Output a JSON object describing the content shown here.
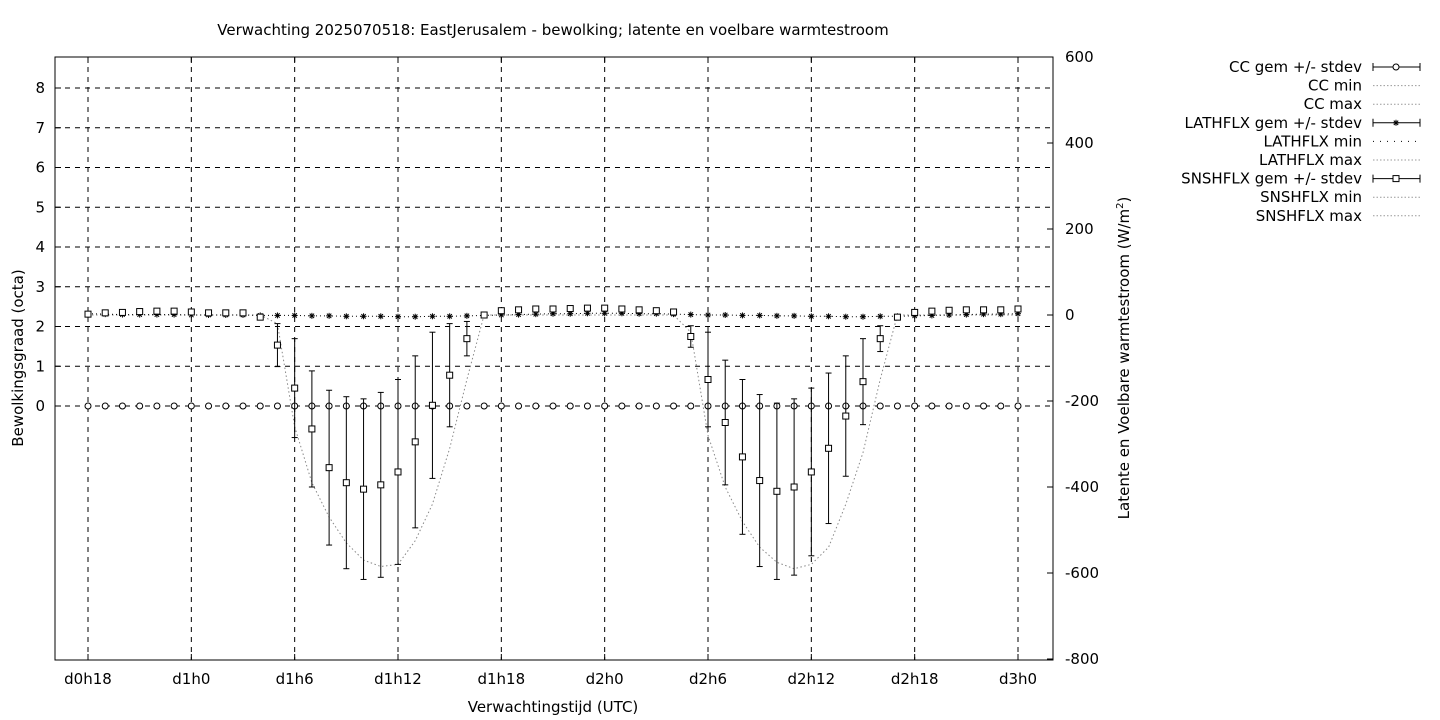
{
  "chart_data": {
    "type": "line",
    "title": "Verwachting 2025070518: EastJerusalem - bewolking; latente en voelbare warmtestroom",
    "xlabel": "Verwachtingstijd (UTC)",
    "ylabel": "Bewolkingsgraad (octa)",
    "y2label_main": "Latente en Voelbare warmtestroom (W/m",
    "y2label_sup": "2",
    "y2label_end": ")",
    "x_unit": "hours since d0h0",
    "xlim": [
      16,
      70
    ],
    "ylim": [
      -6.4,
      8.8
    ],
    "y2lim": [
      -800,
      600
    ],
    "grid": true,
    "x_ticks": [
      {
        "x": 18,
        "label": "d0h18"
      },
      {
        "x": 24,
        "label": "d1h0"
      },
      {
        "x": 30,
        "label": "d1h6"
      },
      {
        "x": 36,
        "label": "d1h12"
      },
      {
        "x": 42,
        "label": "d1h18"
      },
      {
        "x": 48,
        "label": "d2h0"
      },
      {
        "x": 54,
        "label": "d2h6"
      },
      {
        "x": 60,
        "label": "d2h12"
      },
      {
        "x": 66,
        "label": "d2h18"
      },
      {
        "x": 72,
        "label": "d3h0"
      }
    ],
    "y_ticks": [
      0,
      1,
      2,
      3,
      4,
      5,
      6,
      7,
      8
    ],
    "y2_ticks": [
      600,
      400,
      200,
      0,
      -200,
      -400,
      -600,
      -800
    ],
    "legend_placement": "outside-right",
    "legend": [
      {
        "label": "CC gem +/- stdev",
        "style": "circle-errorbar"
      },
      {
        "label": "CC min",
        "style": "dotted"
      },
      {
        "label": "CC max",
        "style": "dotted"
      },
      {
        "label": "LATHFLX gem +/- stdev",
        "style": "star-errorbar"
      },
      {
        "label": "LATHFLX min",
        "style": "sparse-dotted"
      },
      {
        "label": "LATHFLX max",
        "style": "dotted"
      },
      {
        "label": "SNSHFLX gem +/- stdev",
        "style": "square-errorbar"
      },
      {
        "label": "SNSHFLX min",
        "style": "dotted"
      },
      {
        "label": "SNSHFLX max",
        "style": "dotted"
      }
    ],
    "series": [
      {
        "name": "CC gem +/- stdev",
        "axis": "y",
        "marker": "circle",
        "x": [
          18,
          19,
          20,
          21,
          22,
          23,
          24,
          25,
          26,
          27,
          28,
          29,
          30,
          31,
          32,
          33,
          34,
          35,
          36,
          37,
          38,
          39,
          40,
          41,
          42,
          43,
          44,
          45,
          46,
          47,
          48,
          49,
          50,
          51,
          52,
          53,
          54,
          55,
          56,
          57,
          58,
          59,
          60,
          61,
          62,
          63,
          64,
          65,
          66,
          67,
          68,
          69,
          70,
          71,
          72
        ],
        "y": [
          0,
          0,
          0,
          0,
          0,
          0,
          0,
          0,
          0,
          0,
          0,
          0,
          0,
          0,
          0,
          0,
          0,
          0,
          0,
          0,
          0,
          0,
          0,
          0,
          0,
          0,
          0,
          0,
          0,
          0,
          0,
          0,
          0,
          0,
          0,
          0,
          0,
          0,
          0,
          0,
          0,
          0,
          0,
          0,
          0,
          0,
          0,
          0,
          0,
          0,
          0,
          0,
          0,
          0,
          0
        ]
      },
      {
        "name": "LATHFLX gem +/- stdev",
        "axis": "y2",
        "marker": "star",
        "x": [
          18,
          19,
          20,
          21,
          22,
          23,
          24,
          25,
          26,
          27,
          28,
          29,
          30,
          31,
          32,
          33,
          34,
          35,
          36,
          37,
          38,
          39,
          40,
          41,
          42,
          43,
          44,
          45,
          46,
          47,
          48,
          49,
          50,
          51,
          52,
          53,
          54,
          55,
          56,
          57,
          58,
          59,
          60,
          61,
          62,
          63,
          64,
          65,
          66,
          67,
          68,
          69,
          70,
          71,
          72
        ],
        "y": [
          3,
          2,
          1,
          1,
          1,
          1,
          0,
          0,
          0,
          0,
          -1,
          -1,
          -1,
          -2,
          -2,
          -3,
          -3,
          -3,
          -4,
          -4,
          -3,
          -3,
          -2,
          -1,
          0,
          1,
          2,
          3,
          3,
          4,
          4,
          4,
          3,
          3,
          2,
          1,
          0,
          0,
          -1,
          -1,
          -2,
          -2,
          -3,
          -3,
          -4,
          -4,
          -3,
          -3,
          -2,
          -1,
          0,
          1,
          2,
          2,
          3
        ]
      },
      {
        "name": "SNSHFLX gem +/- stdev",
        "axis": "y2",
        "marker": "square",
        "x": [
          18,
          19,
          20,
          21,
          22,
          23,
          24,
          25,
          26,
          27,
          28,
          29,
          30,
          31,
          32,
          33,
          34,
          35,
          36,
          37,
          38,
          39,
          40,
          41,
          42,
          43,
          44,
          45,
          46,
          47,
          48,
          49,
          50,
          51,
          52,
          53,
          54,
          55,
          56,
          57,
          58,
          59,
          60,
          61,
          62,
          63,
          64,
          65,
          66,
          67,
          68,
          69,
          70,
          71,
          72
        ],
        "y": [
          2,
          5,
          6,
          8,
          9,
          9,
          7,
          5,
          5,
          5,
          -5,
          -70,
          -170,
          -265,
          -355,
          -390,
          -405,
          -395,
          -365,
          -295,
          -210,
          -140,
          -55,
          0,
          10,
          12,
          14,
          14,
          15,
          16,
          16,
          14,
          12,
          10,
          7,
          -50,
          -150,
          -250,
          -330,
          -385,
          -410,
          -400,
          -365,
          -310,
          -235,
          -155,
          -55,
          -5,
          6,
          9,
          11,
          12,
          12,
          12,
          14
        ],
        "stdev": [
          0,
          0,
          0,
          0,
          0,
          0,
          0,
          0,
          0,
          0,
          0,
          50,
          115,
          135,
          180,
          200,
          210,
          215,
          215,
          200,
          170,
          120,
          40,
          0,
          0,
          0,
          0,
          0,
          0,
          0,
          0,
          0,
          0,
          0,
          0,
          25,
          110,
          145,
          180,
          200,
          205,
          205,
          195,
          175,
          140,
          100,
          30,
          0,
          0,
          0,
          0,
          0,
          0,
          0,
          0
        ]
      },
      {
        "name": "SNSHFLX min",
        "axis": "y2",
        "line": "dotted",
        "x": [
          18,
          19,
          20,
          21,
          22,
          23,
          24,
          25,
          26,
          27,
          28,
          29,
          30,
          31,
          32,
          33,
          34,
          35,
          36,
          37,
          38,
          39,
          40,
          41,
          42,
          43,
          44,
          45,
          46,
          47,
          48,
          49,
          50,
          51,
          52,
          53,
          54,
          55,
          56,
          57,
          58,
          59,
          60,
          61,
          62,
          63,
          64,
          65,
          66,
          67,
          68,
          69,
          70,
          71,
          72
        ],
        "y": [
          0,
          0,
          0,
          0,
          0,
          0,
          0,
          0,
          0,
          0,
          0,
          -20,
          -260,
          -390,
          -470,
          -530,
          -570,
          -585,
          -580,
          -525,
          -440,
          -310,
          -150,
          0,
          0,
          0,
          0,
          0,
          0,
          0,
          0,
          0,
          0,
          0,
          0,
          -40,
          -280,
          -400,
          -480,
          -540,
          -575,
          -590,
          -580,
          -540,
          -440,
          -320,
          -150,
          0,
          0,
          0,
          0,
          0,
          0,
          0,
          0
        ]
      }
    ]
  }
}
